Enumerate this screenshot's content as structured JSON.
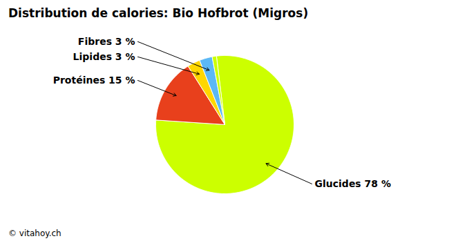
{
  "chart_data": {
    "type": "pie",
    "title": "Distribution de calories: Bio Hofbrot (Migros)",
    "categories": [
      "Glucides 78 %",
      "Protéines 15 %",
      "Lipides 3 %",
      "Fibres 3 %",
      null
    ],
    "values": [
      78,
      15,
      3,
      3,
      1
    ],
    "colors": [
      "#CCFF00",
      "#E8401C",
      "#FFD700",
      "#5BB8F5",
      "#CCFF00"
    ],
    "annotations": [
      "© vitahoy.ch"
    ]
  }
}
